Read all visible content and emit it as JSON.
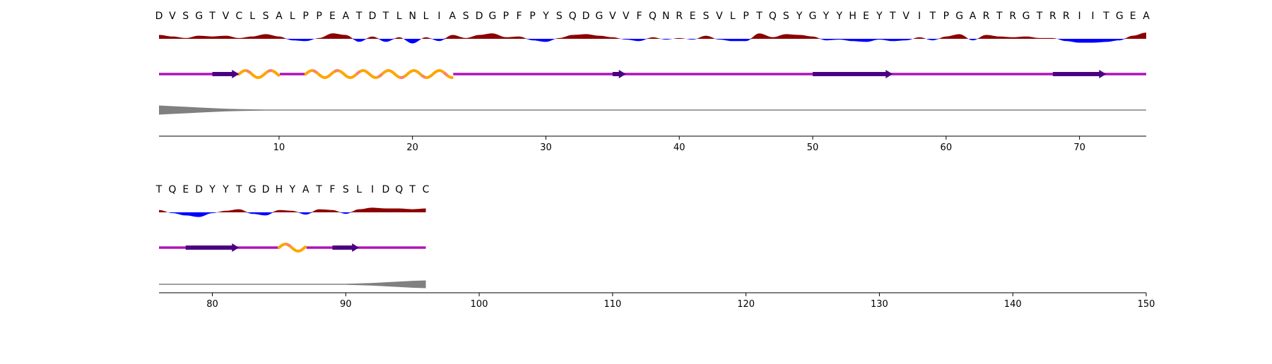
{
  "chart_data": {
    "type": "sequence-track",
    "sequence": "DVSGTVCLSALPPEATDTLNLIASDGPFPYSQDGVVFQNRESVLPTQSYGYYHEYTVITPGARTRGTRRIITGEATQEDYYTGDHYATFSLIDQTC",
    "panels": [
      {
        "xlim": [
          1,
          75
        ],
        "xticks": [
          10,
          20,
          30,
          40,
          50,
          60,
          70
        ]
      },
      {
        "xlim": [
          76,
          150
        ],
        "xticks": [
          80,
          90,
          100,
          110,
          120,
          130,
          140,
          150
        ]
      }
    ],
    "hydrophobicity_profile": {
      "positive_color": "#8b0000",
      "negative_color": "#0000ff",
      "values": [
        0.5,
        0.3,
        0.1,
        0.4,
        0.3,
        0.4,
        0.1,
        0.3,
        0.6,
        0.3,
        -0.2,
        -0.3,
        0.1,
        0.7,
        0.5,
        -0.4,
        0.3,
        -0.4,
        0.2,
        -0.6,
        0.2,
        -0.3,
        0.5,
        0.1,
        0.5,
        0.7,
        0.2,
        0.3,
        -0.2,
        -0.4,
        0.1,
        0.5,
        0.6,
        0.4,
        0.2,
        -0.1,
        -0.3,
        0.2,
        -0.1,
        0.1,
        -0.1,
        0.4,
        -0.1,
        -0.3,
        -0.3,
        0.7,
        0.2,
        0.6,
        0.5,
        0.3,
        -0.2,
        -0.1,
        -0.3,
        -0.4,
        -0.1,
        -0.3,
        -0.2,
        0.2,
        -0.2,
        0.3,
        0.6,
        -0.2,
        0.5,
        0.3,
        0.2,
        0.3,
        0.1,
        0.1,
        -0.3,
        -0.5,
        -0.5,
        -0.4,
        -0.2,
        0.4,
        0.8,
        0.3,
        -0.1,
        -0.4,
        -0.6,
        -0.1,
        0.2,
        0.4,
        -0.2,
        -0.4,
        0.3,
        0.2,
        -0.3,
        0.4,
        0.3,
        -0.2,
        0.4,
        0.6,
        0.5,
        0.5,
        0.4,
        0.5
      ]
    },
    "secondary_structure": {
      "coil_color": "#b112b8",
      "strand_color": "#4b0082",
      "helix_colors": [
        "#ffa500",
        "#fa8072"
      ],
      "strands": [
        [
          5,
          7
        ],
        [
          35,
          36
        ],
        [
          50,
          56
        ],
        [
          68,
          72
        ],
        [
          78,
          82
        ],
        [
          89,
          91
        ]
      ],
      "helices": [
        [
          7,
          10
        ],
        [
          12,
          23
        ],
        [
          85,
          87
        ]
      ]
    },
    "disorder_profile": {
      "color": "#808080",
      "values": [
        1.0,
        0.85,
        0.7,
        0.55,
        0.42,
        0.3,
        0.22,
        0.15,
        0.1,
        0.07,
        0.05,
        0.04,
        0.03,
        0.02,
        0.02,
        0.02,
        0.02,
        0.02,
        0.02,
        0.02,
        0.02,
        0.02,
        0.02,
        0.02,
        0.02,
        0.02,
        0.02,
        0.02,
        0.02,
        0.02,
        0.02,
        0.02,
        0.02,
        0.02,
        0.02,
        0.02,
        0.02,
        0.02,
        0.02,
        0.02,
        0.02,
        0.02,
        0.02,
        0.02,
        0.02,
        0.02,
        0.02,
        0.02,
        0.02,
        0.02,
        0.02,
        0.02,
        0.02,
        0.02,
        0.02,
        0.02,
        0.02,
        0.02,
        0.02,
        0.02,
        0.03,
        0.03,
        0.03,
        0.02,
        0.02,
        0.02,
        0.02,
        0.02,
        0.02,
        0.02,
        0.02,
        0.03,
        0.04,
        0.05,
        0.06,
        0.03,
        0.03,
        0.03,
        0.03,
        0.03,
        0.03,
        0.03,
        0.03,
        0.03,
        0.03,
        0.03,
        0.04,
        0.05,
        0.07,
        0.1,
        0.18,
        0.3,
        0.45,
        0.6,
        0.75,
        0.85
      ]
    }
  }
}
